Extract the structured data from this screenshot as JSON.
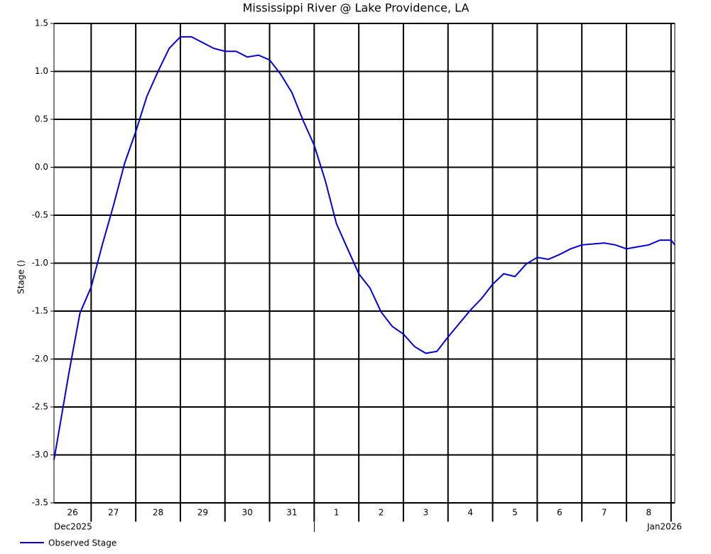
{
  "chart_data": {
    "type": "line",
    "title": "Mississippi River @ Lake Providence, LA",
    "y_label": "Stage ()",
    "x": [
      "2025-12-26T04:00",
      "2025-12-26T06:00",
      "2025-12-26T12:00",
      "2025-12-26T18:00",
      "2025-12-27T00:00",
      "2025-12-27T06:00",
      "2025-12-27T12:00",
      "2025-12-27T18:00",
      "2025-12-28T00:00",
      "2025-12-28T06:00",
      "2025-12-28T12:00",
      "2025-12-28T18:00",
      "2025-12-29T00:00",
      "2025-12-29T06:00",
      "2025-12-29T12:00",
      "2025-12-29T18:00",
      "2025-12-30T00:00",
      "2025-12-30T06:00",
      "2025-12-30T12:00",
      "2025-12-30T18:00",
      "2025-12-31T00:00",
      "2025-12-31T06:00",
      "2025-12-31T12:00",
      "2025-12-31T18:00",
      "2026-01-01T00:00",
      "2026-01-01T06:00",
      "2026-01-01T12:00",
      "2026-01-01T18:00",
      "2026-01-02T00:00",
      "2026-01-02T06:00",
      "2026-01-02T12:00",
      "2026-01-02T18:00",
      "2026-01-03T00:00",
      "2026-01-03T06:00",
      "2026-01-03T12:00",
      "2026-01-03T18:00",
      "2026-01-04T00:00",
      "2026-01-04T06:00",
      "2026-01-04T12:00",
      "2026-01-04T18:00",
      "2026-01-05T00:00",
      "2026-01-05T06:00",
      "2026-01-05T12:00",
      "2026-01-05T18:00",
      "2026-01-06T00:00",
      "2026-01-06T06:00",
      "2026-01-06T12:00",
      "2026-01-06T18:00",
      "2026-01-07T00:00",
      "2026-01-07T06:00",
      "2026-01-07T12:00",
      "2026-01-07T18:00",
      "2026-01-08T00:00",
      "2026-01-08T06:00",
      "2026-01-08T12:00",
      "2026-01-08T18:00",
      "2026-01-09T00:00",
      "2026-01-09T02:00"
    ],
    "series": [
      {
        "name": "Observed Stage",
        "color": "#0000e0",
        "values": [
          -3.05,
          -2.83,
          -2.15,
          -1.52,
          -1.25,
          -0.81,
          -0.4,
          0.04,
          0.37,
          0.74,
          1.0,
          1.24,
          1.36,
          1.36,
          1.3,
          1.24,
          1.21,
          1.21,
          1.15,
          1.17,
          1.12,
          0.97,
          0.78,
          0.49,
          0.23,
          -0.14,
          -0.59,
          -0.85,
          -1.11,
          -1.26,
          -1.51,
          -1.66,
          -1.74,
          -1.87,
          -1.94,
          -1.92,
          -1.77,
          -1.63,
          -1.49,
          -1.37,
          -1.22,
          -1.11,
          -1.14,
          -1.01,
          -0.94,
          -0.96,
          -0.91,
          -0.85,
          -0.81,
          -0.8,
          -0.79,
          -0.81,
          -0.85,
          -0.83,
          -0.81,
          -0.76,
          -0.76,
          -0.81
        ]
      }
    ],
    "xlim": [
      "2025-12-26T04:00",
      "2026-01-09T02:00"
    ],
    "day_labels": [
      {
        "value": "2025-12-26",
        "label": "26"
      },
      {
        "value": "2025-12-27",
        "label": "27"
      },
      {
        "value": "2025-12-28",
        "label": "28"
      },
      {
        "value": "2025-12-29",
        "label": "29"
      },
      {
        "value": "2025-12-30",
        "label": "30"
      },
      {
        "value": "2025-12-31",
        "label": "31"
      },
      {
        "value": "2026-01-01",
        "label": "1"
      },
      {
        "value": "2026-01-02",
        "label": "2"
      },
      {
        "value": "2026-01-03",
        "label": "3"
      },
      {
        "value": "2026-01-04",
        "label": "4"
      },
      {
        "value": "2026-01-05",
        "label": "5"
      },
      {
        "value": "2026-01-06",
        "label": "6"
      },
      {
        "value": "2026-01-07",
        "label": "7"
      },
      {
        "value": "2026-01-08",
        "label": "8"
      },
      {
        "value": "2026-01-09",
        "label": null
      }
    ],
    "month_labels": [
      "Dec2025",
      "Jan2026"
    ],
    "ylim": [
      -3.5,
      1.5
    ],
    "yticks": [
      -3.5,
      {
        "value": -3,
        "label": "-3.0"
      },
      -2.5,
      {
        "value": -2,
        "label": "-2.0"
      },
      -1.5,
      {
        "value": -1,
        "label": "-1.0"
      },
      -0.5,
      {
        "value": 0,
        "label": "0.0"
      },
      0.5,
      {
        "value": 1,
        "label": "1.0"
      },
      1.5
    ],
    "grid": true
  }
}
